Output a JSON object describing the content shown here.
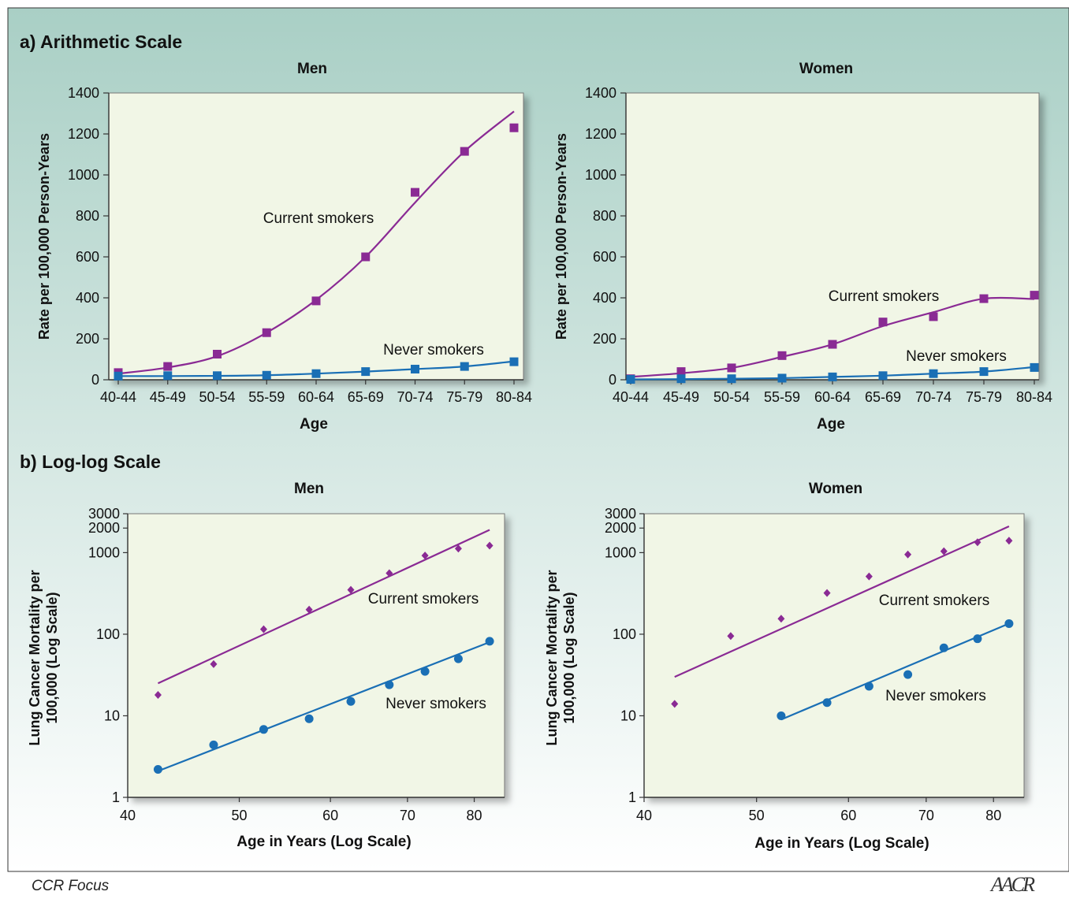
{
  "section_a": {
    "title": "a) Arithmetic Scale"
  },
  "section_b": {
    "title": "b) Log-log Scale"
  },
  "footer": {
    "label": "CCR Focus",
    "logo_text": "AACR"
  },
  "colors": {
    "current": "#8a2a94",
    "never": "#1a6fb5",
    "plot_bg": "#f1f6e6",
    "panel_bg_top": "#a9cfc5",
    "panel_bg_bottom": "#ffffff"
  },
  "chart_data": [
    {
      "id": "a-men",
      "type": "line",
      "title": "Men",
      "xlabel": "Age",
      "ylabel": "Rate per 100,000 Person-Years",
      "categories": [
        "40-44",
        "45-49",
        "50-54",
        "55-59",
        "60-64",
        "65-69",
        "70-74",
        "75-79",
        "80-84"
      ],
      "ylim": [
        0,
        1400
      ],
      "yticks": [
        0,
        200,
        400,
        600,
        800,
        1000,
        1200,
        1400
      ],
      "series": [
        {
          "name": "Current smokers",
          "color": "#8a2a94",
          "marker": "square",
          "values": [
            35,
            65,
            125,
            230,
            385,
            600,
            915,
            1115,
            1230
          ],
          "fit": [
            30,
            60,
            115,
            230,
            390,
            600,
            865,
            1115,
            1310
          ]
        },
        {
          "name": "Never smokers",
          "color": "#1a6fb5",
          "marker": "square",
          "values": [
            18,
            20,
            20,
            22,
            30,
            40,
            52,
            65,
            88
          ],
          "fit": [
            18,
            18,
            19,
            22,
            30,
            40,
            52,
            65,
            90
          ]
        }
      ]
    },
    {
      "id": "a-women",
      "type": "line",
      "title": "Women",
      "xlabel": "Age",
      "ylabel": "Rate per 100,000 Person-Years",
      "categories": [
        "40-44",
        "45-49",
        "50-54",
        "55-59",
        "60-64",
        "65-69",
        "70-74",
        "75-79",
        "80-84"
      ],
      "ylim": [
        0,
        1400
      ],
      "yticks": [
        0,
        200,
        400,
        600,
        800,
        1000,
        1200,
        1400
      ],
      "series": [
        {
          "name": "Current smokers",
          "color": "#8a2a94",
          "marker": "square",
          "values": [
            5,
            40,
            58,
            118,
            173,
            282,
            308,
            396,
            413
          ],
          "fit": [
            14,
            32,
            58,
            112,
            173,
            262,
            330,
            396,
            394
          ]
        },
        {
          "name": "Never smokers",
          "color": "#1a6fb5",
          "marker": "square",
          "values": [
            2,
            5,
            5,
            8,
            14,
            20,
            30,
            40,
            60
          ],
          "fit": [
            2,
            3,
            5,
            8,
            14,
            20,
            30,
            40,
            62
          ]
        }
      ]
    },
    {
      "id": "b-men",
      "type": "scatter",
      "title": "Men",
      "xlabel": "Age in Years (Log Scale)",
      "ylabel": "Lung Cancer Mortality per 100,000 (Log Scale)",
      "xscale": "log",
      "yscale": "log",
      "xlim": [
        40,
        85
      ],
      "ylim": [
        1,
        3000
      ],
      "xticks": [
        40,
        50,
        60,
        70,
        80
      ],
      "yticks": [
        1,
        10,
        100,
        1000,
        2000,
        3000
      ],
      "series": [
        {
          "name": "Current smokers",
          "color": "#8a2a94",
          "marker": "diamond",
          "x": [
            42.5,
            47.5,
            52.5,
            57.5,
            62.5,
            67.5,
            72.5,
            77.5,
            82.5
          ],
          "y": [
            18,
            43,
            115,
            200,
            350,
            560,
            920,
            1120,
            1220
          ],
          "fit_x": [
            42.5,
            82.5
          ],
          "fit_y": [
            25,
            1900
          ]
        },
        {
          "name": "Never smokers",
          "color": "#1a6fb5",
          "marker": "circle",
          "x": [
            42.5,
            47.5,
            52.5,
            57.5,
            62.5,
            67.5,
            72.5,
            77.5,
            82.5
          ],
          "y": [
            2.2,
            4.4,
            6.8,
            9.2,
            15,
            24,
            35,
            50,
            82
          ],
          "fit_x": [
            42.5,
            82.5
          ],
          "fit_y": [
            2.1,
            80
          ]
        }
      ]
    },
    {
      "id": "b-women",
      "type": "scatter",
      "title": "Women",
      "xlabel": "Age in Years (Log Scale)",
      "ylabel": "Lung Cancer Mortality per 100,000 (Log Scale)",
      "xscale": "log",
      "yscale": "log",
      "xlim": [
        40,
        85
      ],
      "ylim": [
        1,
        3000
      ],
      "xticks": [
        40,
        50,
        60,
        70,
        80
      ],
      "yticks": [
        1,
        10,
        100,
        1000,
        2000,
        3000
      ],
      "series": [
        {
          "name": "Current smokers",
          "color": "#8a2a94",
          "marker": "diamond",
          "x": [
            42.5,
            47.5,
            52.5,
            57.5,
            62.5,
            67.5,
            72.5,
            77.5,
            82.5
          ],
          "y": [
            14,
            95,
            155,
            320,
            510,
            950,
            1040,
            1340,
            1400
          ],
          "fit_x": [
            42.5,
            82.5
          ],
          "fit_y": [
            30,
            2100
          ]
        },
        {
          "name": "Never smokers",
          "color": "#1a6fb5",
          "marker": "circle",
          "x": [
            52.5,
            57.5,
            62.5,
            67.5,
            72.5,
            77.5,
            82.5
          ],
          "y": [
            10,
            14.5,
            23,
            32,
            68,
            88,
            135
          ],
          "fit_x": [
            52.5,
            82.5
          ],
          "fit_y": [
            9,
            135
          ]
        }
      ]
    }
  ]
}
